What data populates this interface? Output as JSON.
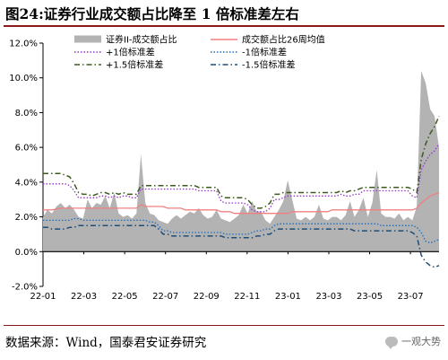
{
  "title": "图24:证券行业成交额占比降至 1 倍标准差左右",
  "source": "数据来源：Wind，国泰君安证券研究",
  "watermark": "一观大势",
  "chart_data": {
    "type": "area",
    "title": "图24:证券行业成交额占比降至 1 倍标准差左右",
    "x_ticks": [
      "22-01",
      "22-03",
      "22-05",
      "22-07",
      "22-09",
      "22-11",
      "23-01",
      "23-03",
      "23-05",
      "23-07"
    ],
    "x_range": [
      0,
      89
    ],
    "ylim": [
      -0.02,
      0.12
    ],
    "y_ticks": [
      -0.02,
      0,
      0.02,
      0.04,
      0.06,
      0.08,
      0.1,
      0.12
    ],
    "y_tick_labels": [
      "-2.0%",
      "0.0%",
      "2.0%",
      "4.0%",
      "6.0%",
      "8.0%",
      "10.0%",
      "12.0%"
    ],
    "grid": false,
    "legend_position": "top",
    "series": [
      {
        "name": "证券II-成交额占比",
        "style": "area",
        "color": "#b3b3b3",
        "values": [
          0.02,
          0.024,
          0.022,
          0.026,
          0.028,
          0.025,
          0.027,
          0.024,
          0.02,
          0.019,
          0.03,
          0.025,
          0.028,
          0.027,
          0.032,
          0.025,
          0.034,
          0.022,
          0.02,
          0.021,
          0.019,
          0.022,
          0.056,
          0.028,
          0.022,
          0.021,
          0.018,
          0.017,
          0.016,
          0.019,
          0.021,
          0.019,
          0.021,
          0.023,
          0.022,
          0.025,
          0.021,
          0.019,
          0.02,
          0.024,
          0.019,
          0.018,
          0.017,
          0.019,
          0.021,
          0.027,
          0.022,
          0.029,
          0.023,
          0.023,
          0.018,
          0.016,
          0.02,
          0.024,
          0.029,
          0.041,
          0.03,
          0.019,
          0.018,
          0.02,
          0.018,
          0.02,
          0.027,
          0.019,
          0.018,
          0.02,
          0.02,
          0.018,
          0.021,
          0.029,
          0.02,
          0.024,
          0.031,
          0.02,
          0.028,
          0.047,
          0.022,
          0.02,
          0.02,
          0.019,
          0.022,
          0.018,
          0.02,
          0.018,
          0.026,
          0.104,
          0.097,
          0.082,
          0.078,
          0.06
        ]
      },
      {
        "name": "成交额占比26周均值",
        "style": "line",
        "color": "#f08080",
        "values": [
          0.024,
          0.024,
          0.024,
          0.0245,
          0.025,
          0.025,
          0.025,
          0.025,
          0.025,
          0.025,
          0.025,
          0.025,
          0.025,
          0.025,
          0.025,
          0.025,
          0.025,
          0.025,
          0.025,
          0.025,
          0.025,
          0.025,
          0.027,
          0.026,
          0.026,
          0.026,
          0.026,
          0.026,
          0.025,
          0.025,
          0.025,
          0.025,
          0.024,
          0.024,
          0.024,
          0.024,
          0.024,
          0.024,
          0.024,
          0.024,
          0.023,
          0.023,
          0.023,
          0.022,
          0.022,
          0.022,
          0.022,
          0.022,
          0.022,
          0.022,
          0.022,
          0.022,
          0.022,
          0.022,
          0.022,
          0.022,
          0.023,
          0.023,
          0.023,
          0.023,
          0.023,
          0.023,
          0.023,
          0.023,
          0.023,
          0.024,
          0.024,
          0.024,
          0.024,
          0.024,
          0.024,
          0.024,
          0.024,
          0.024,
          0.024,
          0.024,
          0.024,
          0.024,
          0.024,
          0.024,
          0.024,
          0.024,
          0.024,
          0.024,
          0.025,
          0.028,
          0.03,
          0.032,
          0.033,
          0.034
        ]
      },
      {
        "name": "+1倍标准差",
        "style": "dotted",
        "color": "#9932cc",
        "values": [
          0.039,
          0.039,
          0.039,
          0.039,
          0.039,
          0.039,
          0.038,
          0.035,
          0.031,
          0.031,
          0.031,
          0.031,
          0.031,
          0.032,
          0.032,
          0.031,
          0.032,
          0.031,
          0.032,
          0.032,
          0.031,
          0.031,
          0.036,
          0.036,
          0.036,
          0.036,
          0.036,
          0.036,
          0.036,
          0.036,
          0.036,
          0.036,
          0.036,
          0.036,
          0.036,
          0.035,
          0.035,
          0.035,
          0.035,
          0.035,
          0.029,
          0.028,
          0.028,
          0.028,
          0.028,
          0.028,
          0.027,
          0.024,
          0.023,
          0.023,
          0.023,
          0.025,
          0.03,
          0.03,
          0.031,
          0.032,
          0.032,
          0.032,
          0.032,
          0.032,
          0.032,
          0.032,
          0.032,
          0.032,
          0.032,
          0.032,
          0.032,
          0.033,
          0.032,
          0.032,
          0.033,
          0.033,
          0.035,
          0.035,
          0.035,
          0.035,
          0.035,
          0.035,
          0.035,
          0.035,
          0.035,
          0.035,
          0.035,
          0.032,
          0.031,
          0.047,
          0.052,
          0.056,
          0.058,
          0.062
        ]
      },
      {
        "name": "-1倍标准差",
        "style": "dotted",
        "color": "#1f6fc4",
        "values": [
          0.018,
          0.018,
          0.018,
          0.018,
          0.018,
          0.018,
          0.018,
          0.019,
          0.019,
          0.018,
          0.018,
          0.018,
          0.018,
          0.018,
          0.018,
          0.018,
          0.018,
          0.018,
          0.018,
          0.018,
          0.018,
          0.018,
          0.018,
          0.018,
          0.017,
          0.017,
          0.015,
          0.012,
          0.012,
          0.011,
          0.011,
          0.011,
          0.011,
          0.011,
          0.011,
          0.011,
          0.011,
          0.011,
          0.011,
          0.011,
          0.011,
          0.01,
          0.01,
          0.01,
          0.01,
          0.01,
          0.01,
          0.011,
          0.012,
          0.012,
          0.013,
          0.013,
          0.015,
          0.016,
          0.016,
          0.016,
          0.016,
          0.016,
          0.016,
          0.016,
          0.016,
          0.016,
          0.016,
          0.016,
          0.016,
          0.016,
          0.016,
          0.016,
          0.016,
          0.016,
          0.016,
          0.016,
          0.016,
          0.016,
          0.016,
          0.016,
          0.015,
          0.015,
          0.015,
          0.015,
          0.015,
          0.015,
          0.015,
          0.015,
          0.014,
          0.011,
          0.006,
          0.005,
          0.006,
          0.007
        ]
      },
      {
        "name": "+1.5倍标准差",
        "style": "dashdot",
        "color": "#3d5a1e",
        "values": [
          0.045,
          0.045,
          0.045,
          0.045,
          0.045,
          0.044,
          0.043,
          0.039,
          0.034,
          0.033,
          0.033,
          0.032,
          0.033,
          0.034,
          0.034,
          0.033,
          0.034,
          0.033,
          0.034,
          0.033,
          0.033,
          0.033,
          0.038,
          0.038,
          0.038,
          0.038,
          0.038,
          0.038,
          0.038,
          0.038,
          0.038,
          0.038,
          0.038,
          0.038,
          0.038,
          0.037,
          0.037,
          0.037,
          0.037,
          0.037,
          0.032,
          0.031,
          0.031,
          0.031,
          0.031,
          0.031,
          0.03,
          0.027,
          0.025,
          0.025,
          0.026,
          0.028,
          0.033,
          0.033,
          0.034,
          0.034,
          0.034,
          0.034,
          0.034,
          0.034,
          0.034,
          0.034,
          0.034,
          0.034,
          0.034,
          0.034,
          0.034,
          0.035,
          0.034,
          0.035,
          0.035,
          0.036,
          0.037,
          0.037,
          0.037,
          0.037,
          0.037,
          0.037,
          0.037,
          0.037,
          0.037,
          0.037,
          0.037,
          0.036,
          0.034,
          0.053,
          0.062,
          0.068,
          0.072,
          0.078
        ]
      },
      {
        "name": "-1.5倍标准差",
        "style": "dashdot",
        "color": "#1f4e79",
        "values": [
          0.014,
          0.014,
          0.013,
          0.013,
          0.013,
          0.013,
          0.014,
          0.014,
          0.015,
          0.015,
          0.015,
          0.015,
          0.015,
          0.015,
          0.015,
          0.015,
          0.015,
          0.015,
          0.015,
          0.015,
          0.015,
          0.015,
          0.015,
          0.015,
          0.015,
          0.015,
          0.013,
          0.01,
          0.01,
          0.009,
          0.009,
          0.009,
          0.009,
          0.009,
          0.009,
          0.009,
          0.009,
          0.009,
          0.009,
          0.009,
          0.009,
          0.008,
          0.008,
          0.008,
          0.008,
          0.008,
          0.008,
          0.008,
          0.009,
          0.009,
          0.01,
          0.01,
          0.012,
          0.013,
          0.013,
          0.013,
          0.013,
          0.013,
          0.013,
          0.013,
          0.013,
          0.013,
          0.013,
          0.013,
          0.013,
          0.013,
          0.013,
          0.013,
          0.013,
          0.013,
          0.012,
          0.012,
          0.012,
          0.012,
          0.012,
          0.012,
          0.012,
          0.012,
          0.012,
          0.012,
          0.012,
          0.012,
          0.012,
          0.011,
          0.009,
          -0.002,
          -0.006,
          -0.008,
          -0.009,
          -0.008
        ]
      }
    ]
  }
}
